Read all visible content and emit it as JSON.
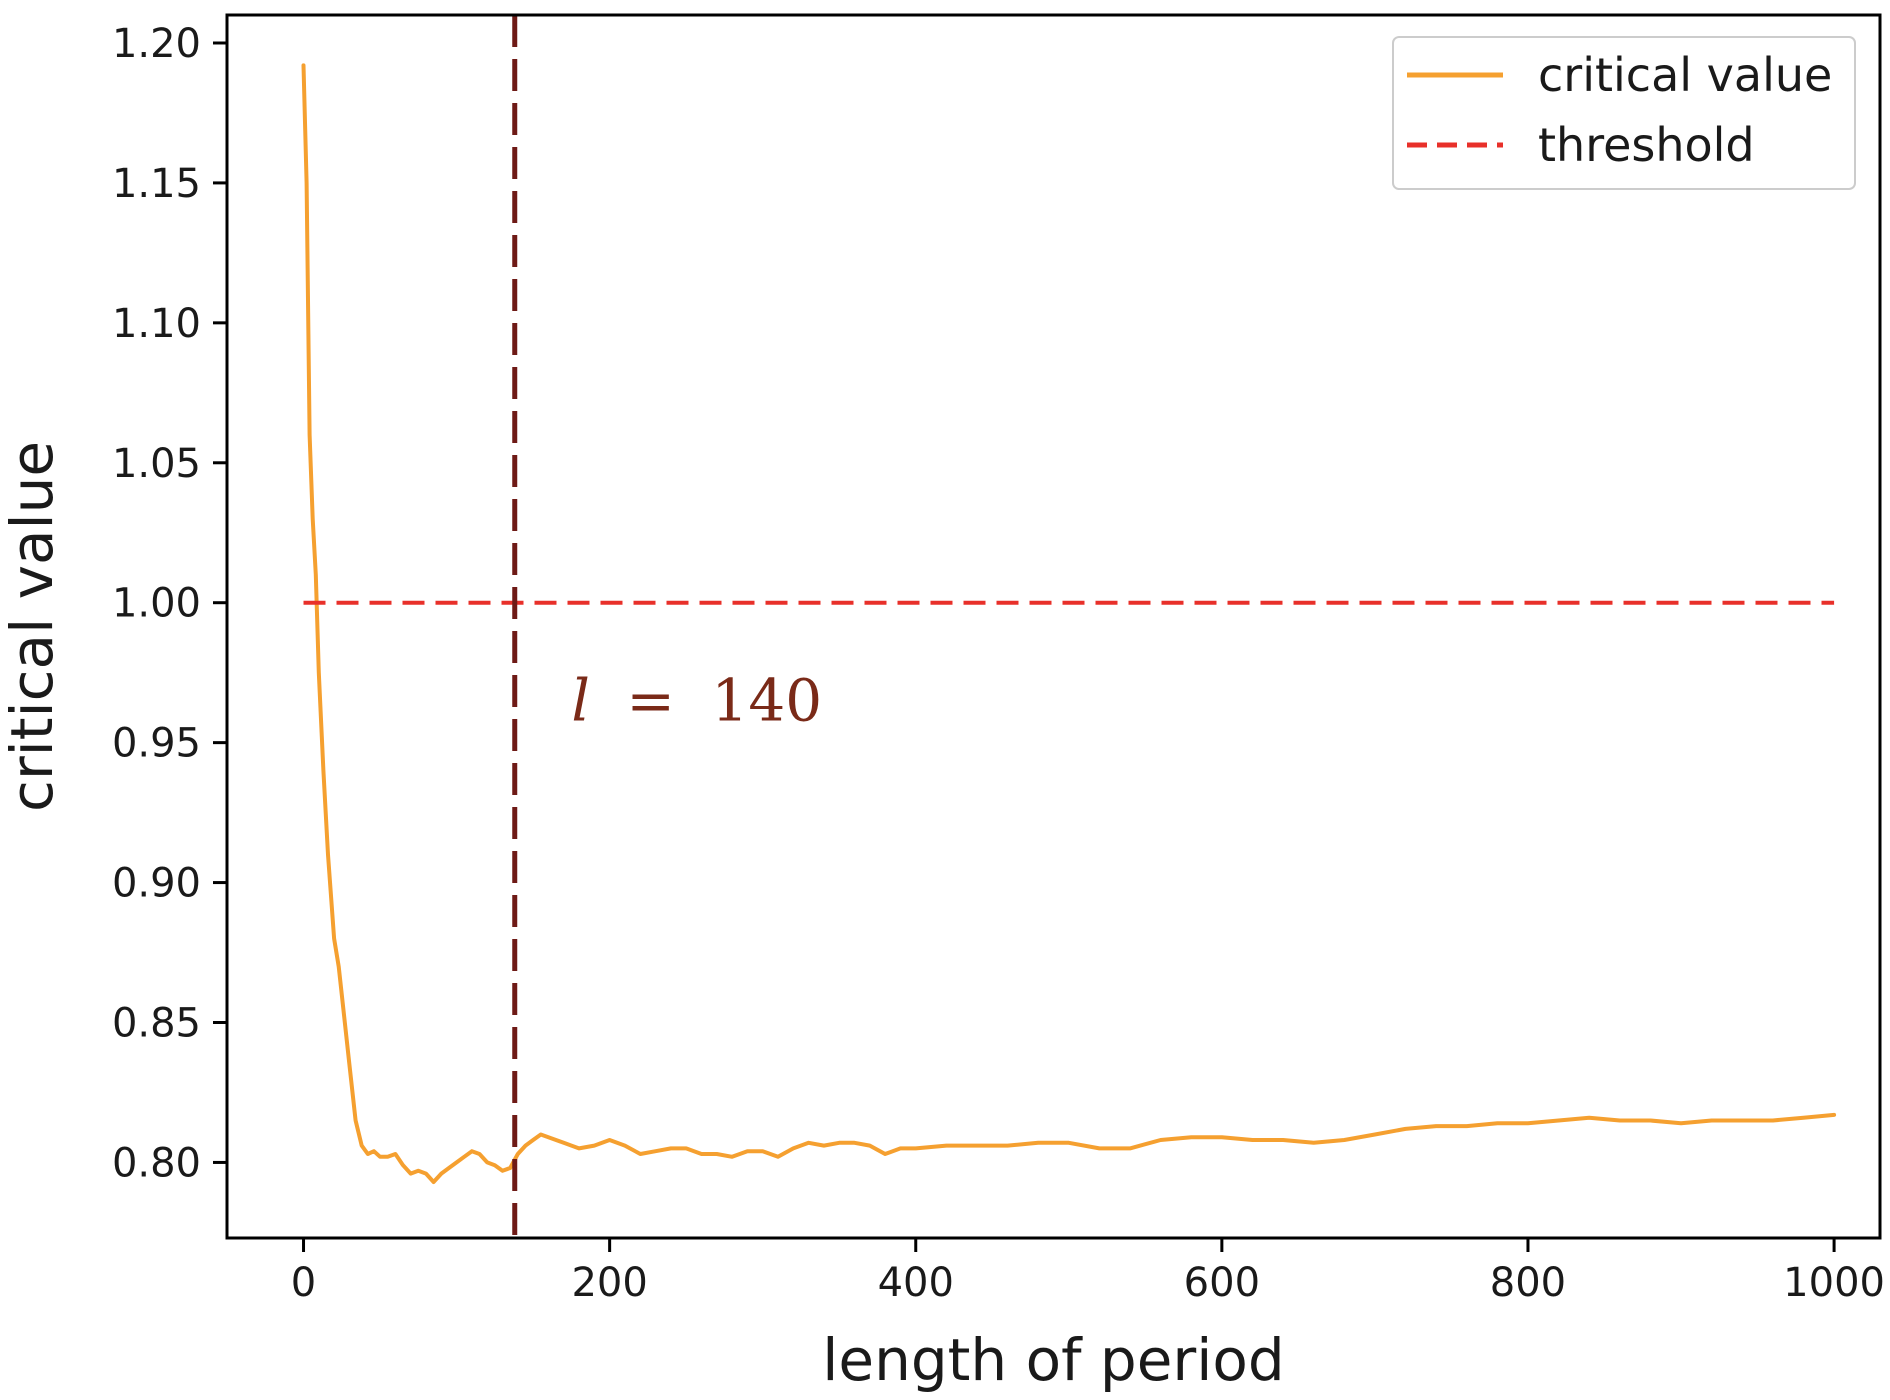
{
  "chart_data": {
    "type": "line",
    "xlabel": "length of period",
    "ylabel": "critical value",
    "xlim": [
      -50,
      1030
    ],
    "ylim": [
      0.773,
      1.21
    ],
    "x_ticks": [
      0,
      200,
      400,
      600,
      800,
      1000
    ],
    "x_tick_labels": [
      "0",
      "200",
      "400",
      "600",
      "800",
      "1000"
    ],
    "y_ticks": [
      0.8,
      0.85,
      0.9,
      0.95,
      1.0,
      1.05,
      1.1,
      1.15,
      1.2
    ],
    "y_tick_labels": [
      "0.80",
      "0.85",
      "0.90",
      "0.95",
      "1.00",
      "1.05",
      "1.10",
      "1.15",
      "1.20"
    ],
    "grid": false,
    "legend": {
      "placement": "upper-right",
      "entries": [
        {
          "label": "critical value",
          "style": "solid",
          "color": "#f5a030"
        },
        {
          "label": "threshold",
          "style": "dashed",
          "color": "#e8302a"
        }
      ]
    },
    "series": [
      {
        "name": "critical value",
        "color": "#f5a030",
        "style": "solid",
        "x": [
          0,
          2,
          4,
          6,
          8,
          10,
          13,
          16,
          20,
          23,
          26,
          30,
          34,
          38,
          42,
          46,
          50,
          55,
          60,
          65,
          70,
          75,
          80,
          85,
          90,
          95,
          100,
          105,
          110,
          115,
          120,
          125,
          130,
          135,
          140,
          145,
          150,
          155,
          160,
          170,
          180,
          190,
          200,
          210,
          220,
          230,
          240,
          250,
          260,
          270,
          280,
          290,
          300,
          310,
          320,
          330,
          340,
          350,
          360,
          370,
          380,
          390,
          400,
          420,
          440,
          460,
          480,
          500,
          520,
          540,
          560,
          580,
          600,
          620,
          640,
          660,
          680,
          700,
          720,
          740,
          760,
          780,
          800,
          820,
          840,
          860,
          880,
          900,
          920,
          940,
          960,
          980,
          1000
        ],
        "y": [
          1.192,
          1.15,
          1.06,
          1.03,
          1.01,
          0.975,
          0.94,
          0.91,
          0.88,
          0.87,
          0.855,
          0.835,
          0.815,
          0.806,
          0.803,
          0.804,
          0.802,
          0.802,
          0.803,
          0.799,
          0.796,
          0.797,
          0.796,
          0.793,
          0.796,
          0.798,
          0.8,
          0.802,
          0.804,
          0.803,
          0.8,
          0.799,
          0.797,
          0.798,
          0.803,
          0.806,
          0.808,
          0.81,
          0.809,
          0.807,
          0.805,
          0.806,
          0.808,
          0.806,
          0.803,
          0.804,
          0.805,
          0.805,
          0.803,
          0.803,
          0.802,
          0.804,
          0.804,
          0.802,
          0.805,
          0.807,
          0.806,
          0.807,
          0.807,
          0.806,
          0.803,
          0.805,
          0.805,
          0.806,
          0.806,
          0.806,
          0.807,
          0.807,
          0.805,
          0.805,
          0.808,
          0.809,
          0.809,
          0.808,
          0.808,
          0.807,
          0.808,
          0.81,
          0.812,
          0.813,
          0.813,
          0.814,
          0.814,
          0.815,
          0.816,
          0.815,
          0.815,
          0.814,
          0.815,
          0.815,
          0.815,
          0.816,
          0.817
        ]
      },
      {
        "name": "threshold",
        "color": "#e8302a",
        "style": "dashed",
        "x": [
          0,
          1000
        ],
        "y": [
          1.0,
          1.0
        ]
      }
    ],
    "vertical_line": {
      "x": 138,
      "color": "#6e1a16",
      "style": "dashed"
    },
    "annotation": {
      "text_var": "l",
      "text_eq": "=",
      "text_val": "140",
      "x": 175,
      "y": 0.965,
      "color": "#7a2a18"
    }
  }
}
